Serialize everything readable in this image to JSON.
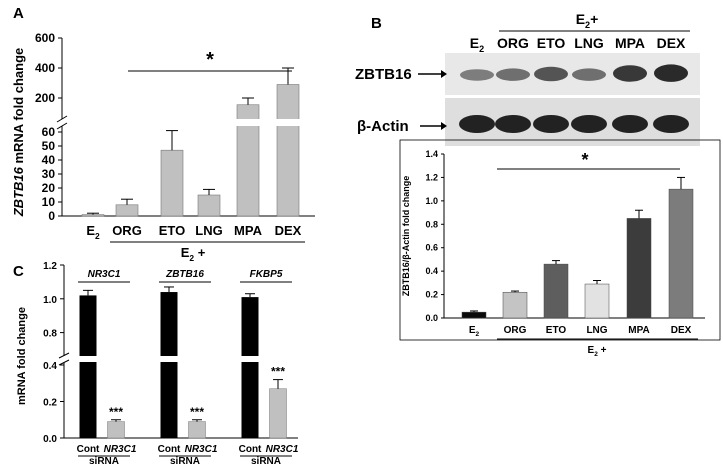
{
  "figure": {
    "panel_labels": [
      "A",
      "B",
      "C"
    ]
  },
  "chart_data": [
    {
      "panel": "A",
      "type": "bar",
      "ylabel_gene": "ZBTB16",
      "ylabel_rest": " mRNA fold change",
      "categories": [
        "E2",
        "ORG",
        "ETO",
        "LNG",
        "MPA",
        "DEX"
      ],
      "values": [
        1,
        8,
        47,
        15,
        155,
        290
      ],
      "errors": [
        1,
        4,
        14,
        4,
        45,
        110
      ],
      "lower_axis": {
        "ylim": [
          0,
          60
        ],
        "ticks": [
          "0",
          "10",
          "20",
          "30",
          "40",
          "50",
          "60"
        ]
      },
      "upper_axis": {
        "ylim": [
          100,
          600
        ],
        "ticks": [
          "200",
          "400",
          "600"
        ]
      },
      "axis_break": true,
      "group_label": "E2 +",
      "significance": "*",
      "bar_color": "#c0c0c0"
    },
    {
      "panel": "B",
      "type": "bar",
      "blot": {
        "header": "E2+",
        "lanes": [
          "E2",
          "ORG",
          "ETO",
          "LNG",
          "MPA",
          "DEX"
        ],
        "rows": [
          "ZBTB16",
          "β-Actin"
        ]
      },
      "ylabel": "ZBTB16/β-Actin fold change",
      "categories": [
        "E2",
        "ORG",
        "ETO",
        "LNG",
        "MPA",
        "DEX"
      ],
      "values": [
        0.05,
        0.22,
        0.46,
        0.29,
        0.85,
        1.1
      ],
      "errors": [
        0.01,
        0.01,
        0.03,
        0.03,
        0.07,
        0.1
      ],
      "colors": [
        "#0a0a0a",
        "#c4c4c4",
        "#5e5e5e",
        "#e2e2e2",
        "#3c3c3c",
        "#7c7c7c"
      ],
      "ylim": [
        0,
        1.4
      ],
      "ticks": [
        "0.0",
        "0.2",
        "0.4",
        "0.6",
        "0.8",
        "1.0",
        "1.2",
        "1.4"
      ],
      "group_label": "E2 +",
      "significance": "*"
    },
    {
      "panel": "C",
      "type": "bar",
      "ylabel": "mRNA fold change",
      "groups": [
        {
          "gene": "NR3C1",
          "values": [
            1.02,
            0.09
          ],
          "errors": [
            0.03,
            0.01
          ],
          "sig": "***"
        },
        {
          "gene": "ZBTB16",
          "values": [
            1.04,
            0.09
          ],
          "errors": [
            0.03,
            0.01
          ],
          "sig": "***"
        },
        {
          "gene": "FKBP5",
          "values": [
            1.01,
            0.27
          ],
          "errors": [
            0.02,
            0.05
          ],
          "sig": "***"
        }
      ],
      "bar_labels": {
        "control": "Cont",
        "knockdown": "NR3C1",
        "suffix": "siRNA"
      },
      "colors": [
        "#000000",
        "#c0c0c0"
      ],
      "lower_axis": {
        "ylim": [
          0,
          0.4
        ],
        "ticks": [
          "0.0",
          "0.2",
          "0.4"
        ]
      },
      "upper_axis": {
        "ylim": [
          0.7,
          1.2
        ],
        "ticks": [
          "0.8",
          "1.0",
          "1.2"
        ]
      },
      "axis_break": true
    }
  ]
}
